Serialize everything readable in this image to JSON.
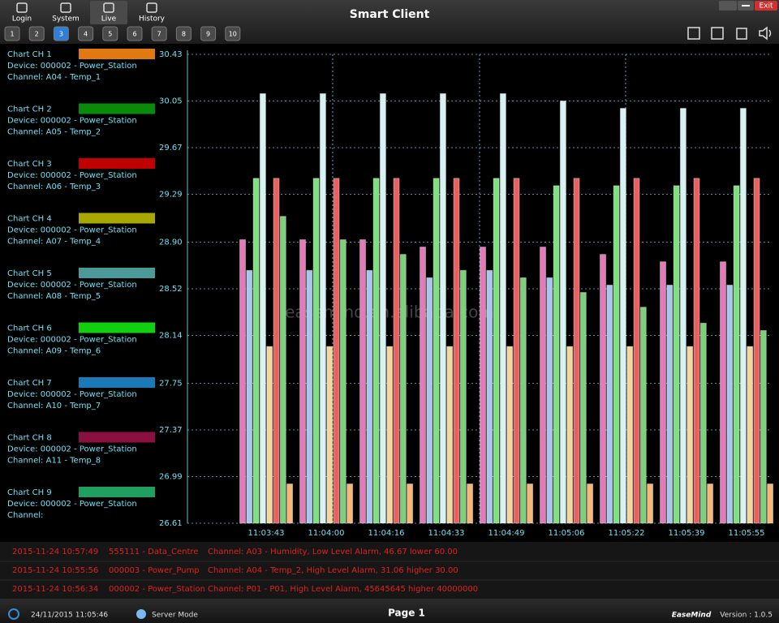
{
  "header": {
    "title": "Smart Client",
    "nav": [
      "Login",
      "System",
      "Live",
      "History"
    ],
    "active_nav": 2,
    "pages": [
      "1",
      "2",
      "3",
      "4",
      "5",
      "6",
      "7",
      "8",
      "9",
      "10"
    ],
    "active_page": 2,
    "exit": "Exit"
  },
  "legend": [
    {
      "name": "Chart CH 1",
      "device": "Device: 000002 - Power_Station",
      "channel": "Channel: A04 - Temp_1",
      "color": "#e07a10"
    },
    {
      "name": "Chart CH 2",
      "device": "Device: 000002 - Power_Station",
      "channel": "Channel: A05 - Temp_2",
      "color": "#0a8a0a"
    },
    {
      "name": "Chart CH 3",
      "device": "Device: 000002 - Power_Station",
      "channel": "Channel: A06 - Temp_3",
      "color": "#c00000"
    },
    {
      "name": "Chart CH 4",
      "device": "Device: 000002 - Power_Station",
      "channel": "Channel: A07 - Temp_4",
      "color": "#a8a800"
    },
    {
      "name": "Chart CH 5",
      "device": "Device: 000002 - Power_Station",
      "channel": "Channel: A08 - Temp_5",
      "color": "#4a9a9a"
    },
    {
      "name": "Chart CH 6",
      "device": "Device: 000002 - Power_Station",
      "channel": "Channel: A09 - Temp_6",
      "color": "#10d010"
    },
    {
      "name": "Chart CH 7",
      "device": "Device: 000002 - Power_Station",
      "channel": "Channel: A10 - Temp_7",
      "color": "#1a7ab8"
    },
    {
      "name": "Chart CH 8",
      "device": "Device: 000002 - Power_Station",
      "channel": "Channel: A11 - Temp_8",
      "color": "#8a1040"
    },
    {
      "name": "Chart CH 9",
      "device": "Device: 000002 - Power_Station",
      "channel": "Channel:",
      "color": "#20a060"
    }
  ],
  "chart_data": {
    "type": "bar",
    "categories": [
      "11:03:43",
      "11:04:00",
      "11:04:16",
      "11:04:33",
      "11:04:49",
      "11:05:06",
      "11:05:22",
      "11:05:39",
      "11:05:55"
    ],
    "series": [
      {
        "color": "#e27bb8",
        "values": [
          28.92,
          28.92,
          28.92,
          28.86,
          28.86,
          28.86,
          28.8,
          28.74,
          28.74
        ]
      },
      {
        "color": "#a9c6ec",
        "values": [
          28.67,
          28.67,
          28.67,
          28.61,
          28.67,
          28.61,
          28.55,
          28.55,
          28.55
        ]
      },
      {
        "color": "#7fe07f",
        "values": [
          29.42,
          29.42,
          29.42,
          29.42,
          29.42,
          29.36,
          29.36,
          29.36,
          29.36
        ]
      },
      {
        "color": "#d8f2f4",
        "values": [
          30.11,
          30.11,
          30.11,
          30.11,
          30.11,
          30.05,
          29.99,
          29.99,
          29.99
        ]
      },
      {
        "color": "#f3d7a0",
        "values": [
          28.05,
          28.05,
          28.05,
          28.05,
          28.05,
          28.05,
          28.05,
          28.05,
          28.05
        ]
      },
      {
        "color": "#e86060",
        "values": [
          29.42,
          29.42,
          29.42,
          29.42,
          29.42,
          29.42,
          29.42,
          29.42,
          29.42
        ]
      },
      {
        "color": "#7cd07c",
        "values": [
          29.11,
          28.92,
          28.8,
          28.67,
          28.61,
          28.49,
          28.37,
          28.24,
          28.18
        ]
      },
      {
        "color": "#f5b87a",
        "values": [
          26.93,
          26.93,
          26.93,
          26.93,
          26.93,
          26.93,
          26.93,
          26.93,
          26.93
        ]
      }
    ],
    "ylim": [
      26.61,
      30.43
    ],
    "yticks": [
      26.61,
      26.99,
      27.37,
      27.75,
      28.14,
      28.52,
      {
        "value": 28.9,
        "label": "28.90"
      },
      29.29,
      29.67,
      30.05,
      30.43
    ],
    "grid": true,
    "watermark": "easemind.en.alibaba.com"
  },
  "alarms": [
    [
      "2015-11-24 10:57:49",
      "555111 - Data_Centre",
      "Channel: A03 - Humidity, Low Level Alarm, 46.67 lower 60.00"
    ],
    [
      "2015-11-24 10:55:56",
      "000003 - Power_Pump",
      "Channel: A04 - Temp_2, High Level Alarm, 31.06 higher 30.00"
    ],
    [
      "2015-11-24 10:56:34",
      "000002 - Power_Station",
      "Channel: P01 - P01, High Level Alarm, 45645645 higher 40000000"
    ]
  ],
  "footer": {
    "datetime": "24/11/2015 11:05:46",
    "mode": "Server Mode",
    "page": "Page 1",
    "brand": "EaseMind",
    "version": "Version : 1.0.5"
  }
}
